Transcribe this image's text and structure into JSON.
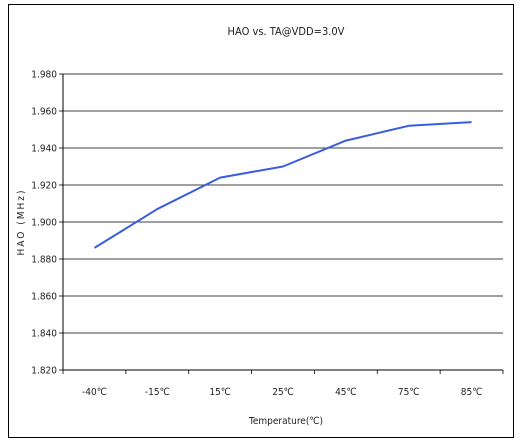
{
  "chart_data": {
    "type": "line",
    "title": "HAO vs. TA@VDD=3.0V",
    "xlabel": "Temperature(℃)",
    "ylabel": "HAO (MHz)",
    "categories": [
      "-40℃",
      "-15℃",
      "15℃",
      "25℃",
      "45℃",
      "75℃",
      "85℃"
    ],
    "series": [
      {
        "values": [
          1.886,
          1.907,
          1.924,
          1.93,
          1.944,
          1.952,
          1.954
        ]
      }
    ],
    "yticks": [
      "1.820",
      "1.840",
      "1.860",
      "1.880",
      "1.900",
      "1.920",
      "1.940",
      "1.960",
      "1.980"
    ],
    "ylim": [
      1.82,
      1.98
    ],
    "grid": true,
    "legend": "none",
    "colors": {
      "line": "#3a5de0",
      "grid": "#000000"
    }
  }
}
